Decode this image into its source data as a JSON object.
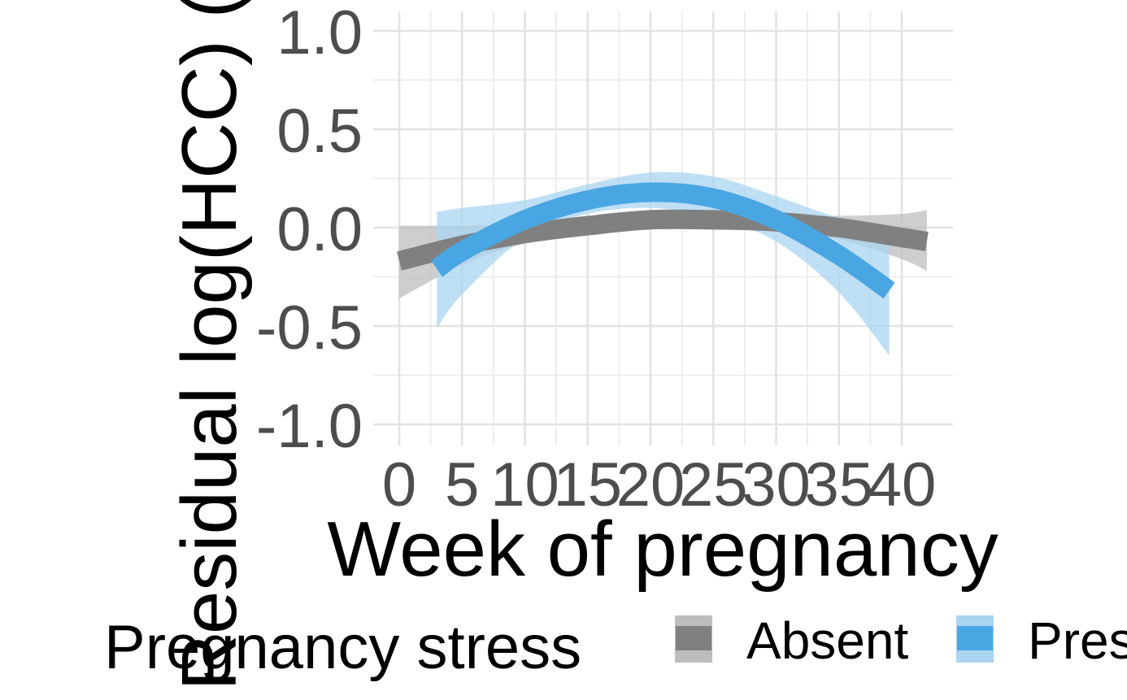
{
  "chart_data": {
    "type": "line",
    "title": "",
    "xlabel": "Week of pregnancy",
    "ylabel": "Residual log(HCC) (",
    "xlim": [
      0,
      42
    ],
    "ylim": [
      -1.0,
      1.0
    ],
    "x_ticks": [
      0,
      5,
      10,
      15,
      20,
      25,
      30,
      35,
      40
    ],
    "x_tick_labels": [
      "0",
      "5",
      "10",
      "15",
      "20",
      "25",
      "30",
      "35",
      "40"
    ],
    "y_ticks": [
      -1.0,
      -0.5,
      0.0,
      0.5,
      1.0
    ],
    "y_tick_labels": [
      "-1.0",
      "-0.5",
      "0.0",
      "0.5",
      "1.0"
    ],
    "grid": true,
    "legend": {
      "title": "Pregnancy stress",
      "position": "bottom",
      "entries": [
        "Absent",
        "Present"
      ]
    },
    "series": [
      {
        "name": "Absent",
        "color": "#808080",
        "band_color": "#bdbdbd",
        "x": [
          0,
          5,
          10,
          15,
          20,
          25,
          30,
          35,
          40,
          42
        ],
        "y": [
          -0.17,
          -0.09,
          -0.03,
          0.01,
          0.04,
          0.04,
          0.03,
          0.0,
          -0.05,
          -0.07
        ],
        "lower": [
          -0.36,
          -0.19,
          -0.08,
          -0.02,
          0.0,
          0.0,
          -0.01,
          -0.06,
          -0.16,
          -0.22
        ],
        "upper": [
          0.01,
          0.01,
          0.02,
          0.05,
          0.08,
          0.09,
          0.07,
          0.06,
          0.07,
          0.09
        ]
      },
      {
        "name": "Present",
        "color": "#4aa6e2",
        "band_color": "#a9d4f2",
        "x": [
          3,
          5,
          10,
          15,
          20,
          25,
          30,
          35,
          39
        ],
        "y": [
          -0.21,
          -0.12,
          0.04,
          0.14,
          0.18,
          0.15,
          0.04,
          -0.14,
          -0.32
        ],
        "lower": [
          -0.51,
          -0.34,
          -0.05,
          0.07,
          0.1,
          0.05,
          -0.07,
          -0.33,
          -0.65
        ],
        "upper": [
          0.08,
          0.1,
          0.14,
          0.22,
          0.28,
          0.26,
          0.16,
          0.05,
          0.0
        ]
      }
    ]
  }
}
